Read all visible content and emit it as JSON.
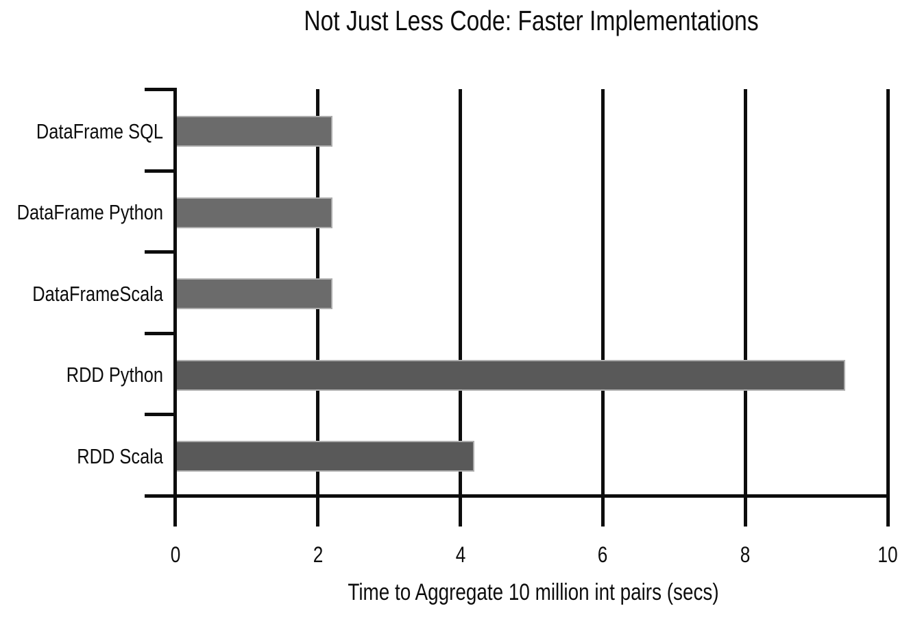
{
  "chart_data": {
    "type": "bar",
    "orientation": "horizontal",
    "title": "Not Just Less Code: Faster Implementations",
    "xlabel": "Time to Aggregate 10 million int pairs (secs)",
    "ylabel": "",
    "categories": [
      "DataFrame SQL",
      "DataFrame Python",
      "DataFrameScala",
      "RDD Python",
      "RDD Scala"
    ],
    "values": [
      2.2,
      2.2,
      2.2,
      9.4,
      4.2
    ],
    "x_ticks": [
      0,
      2,
      4,
      6,
      8,
      10
    ],
    "xlim": [
      0,
      10
    ],
    "grid": true,
    "legend": false,
    "bar_colors": [
      "#6B6B6B",
      "#6B6B6B",
      "#6B6B6B",
      "#595959",
      "#595959"
    ],
    "bar_border_color": "#ADADAD",
    "axis_color": "#0D0D0D",
    "background_color": "#FFFFFF"
  }
}
